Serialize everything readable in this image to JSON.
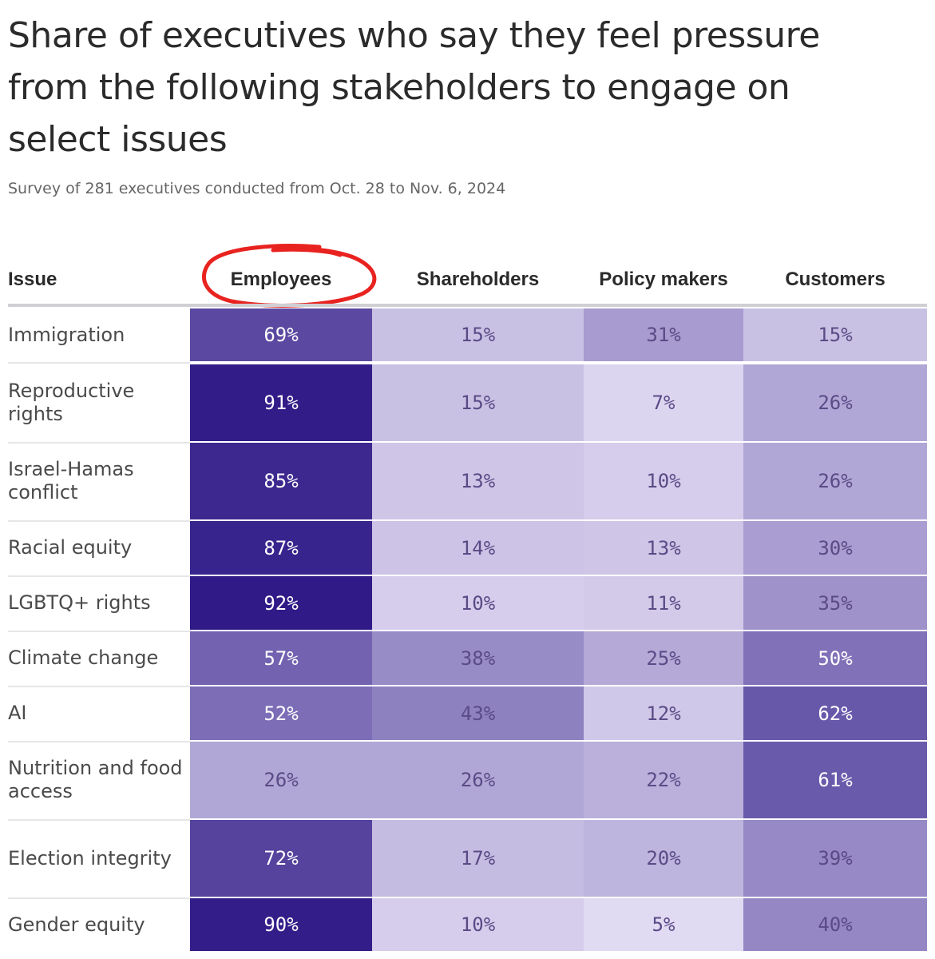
{
  "chart_data": {
    "type": "heatmap",
    "title": "Share of executives who say they feel pressure from the following stakeholders to engage on select issues",
    "subtitle": "Survey of 281 executives conducted from Oct. 28 to Nov. 6, 2024",
    "row_header": "Issue",
    "columns": [
      "Employees",
      "Shareholders",
      "Policy makers",
      "Customers"
    ],
    "rows": [
      {
        "label": "Immigration",
        "values": [
          "69%",
          "15%",
          "31%",
          "15%"
        ]
      },
      {
        "label": "Reproductive rights",
        "values": [
          "91%",
          "15%",
          "7%",
          "26%"
        ]
      },
      {
        "label": "Israel-Hamas conflict",
        "values": [
          "85%",
          "13%",
          "10%",
          "26%"
        ]
      },
      {
        "label": "Racial equity",
        "values": [
          "87%",
          "14%",
          "13%",
          "30%"
        ]
      },
      {
        "label": "LGBTQ+ rights",
        "values": [
          "92%",
          "10%",
          "11%",
          "35%"
        ]
      },
      {
        "label": "Climate change",
        "values": [
          "57%",
          "38%",
          "25%",
          "50%"
        ]
      },
      {
        "label": "AI",
        "values": [
          "52%",
          "43%",
          "12%",
          "62%"
        ]
      },
      {
        "label": "Nutrition and food access",
        "values": [
          "26%",
          "26%",
          "22%",
          "61%"
        ]
      },
      {
        "label": "Election integrity",
        "values": [
          "72%",
          "17%",
          "20%",
          "39%"
        ]
      },
      {
        "label": "Gender equity",
        "values": [
          "90%",
          "10%",
          "5%",
          "40%"
        ]
      }
    ],
    "annotation": {
      "type": "hand-drawn circle",
      "target_column": "Employees",
      "color": "#e8231f"
    },
    "color_scale": {
      "low": "#efe9fb",
      "high": "#2f1a87",
      "text_dark": "#5a4a86",
      "text_light": "#ffffff"
    }
  }
}
